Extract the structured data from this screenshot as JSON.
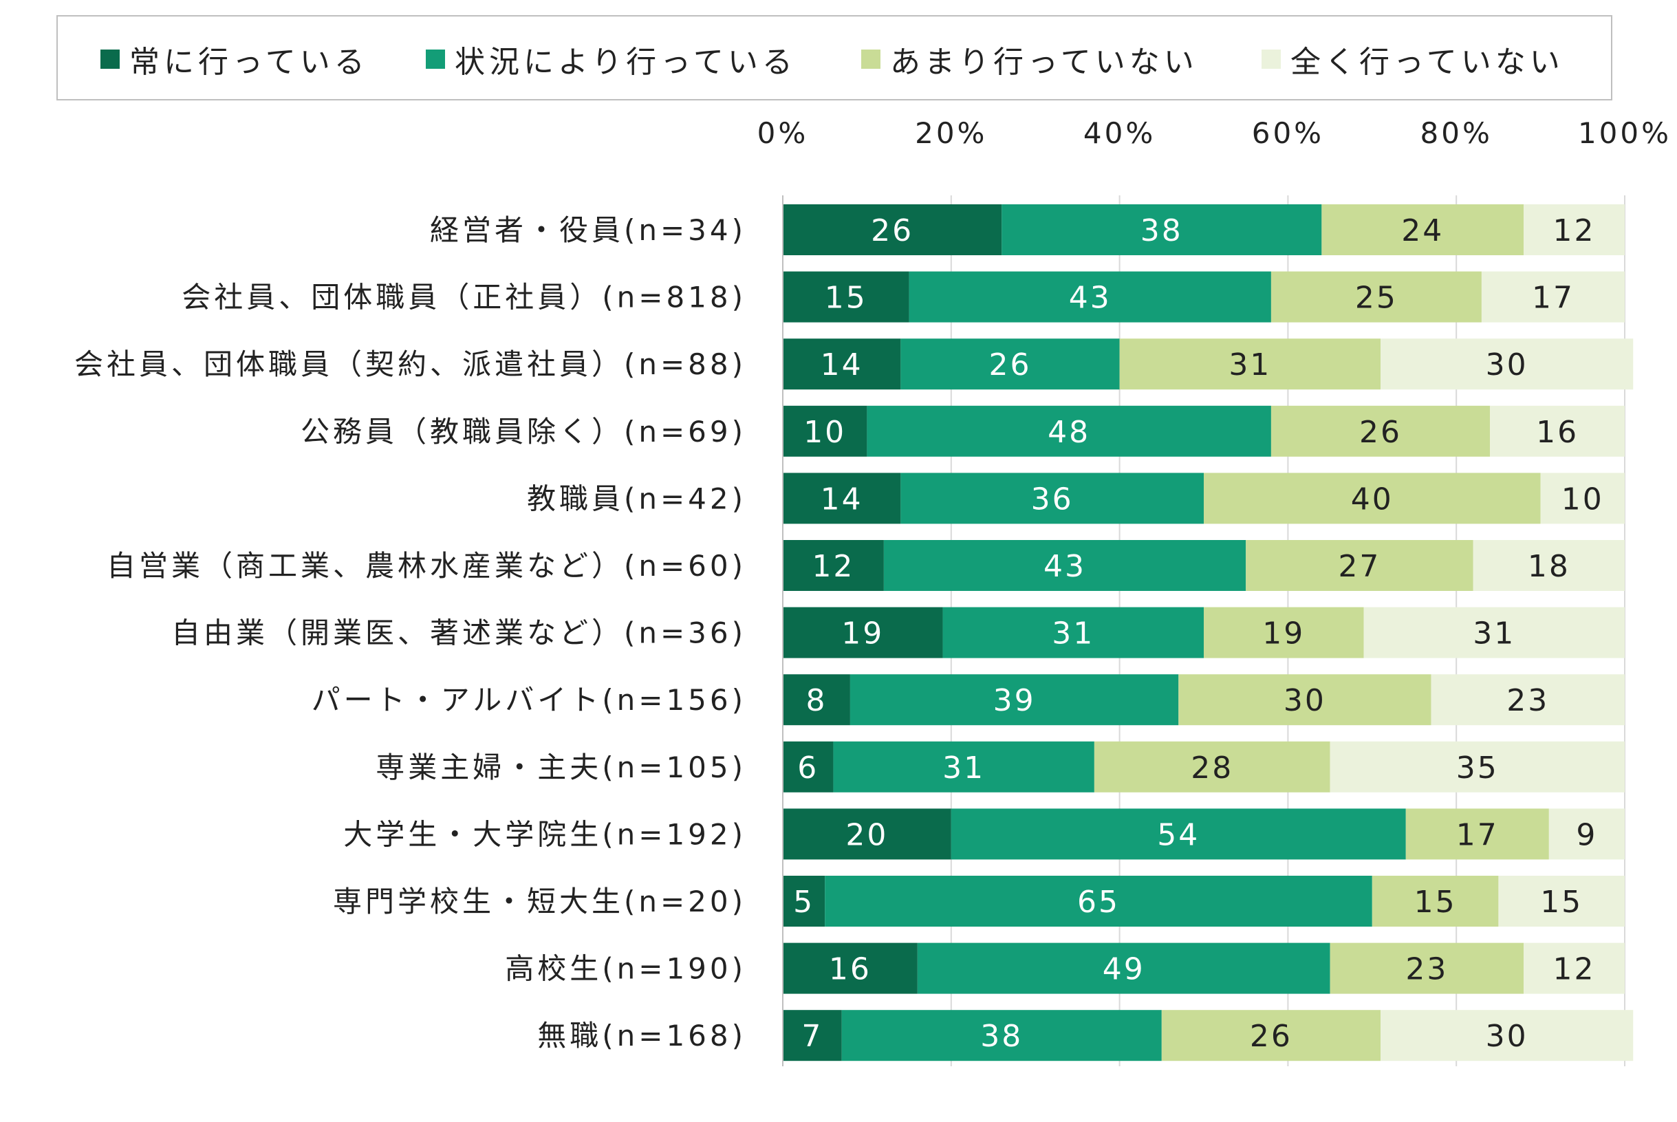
{
  "chart_data": {
    "type": "bar",
    "orientation": "horizontal",
    "stacked": true,
    "title": "",
    "xlabel": "",
    "ylabel": "",
    "xlim": [
      0,
      100
    ],
    "grid": true,
    "legend_position": "top",
    "x_ticks": [
      "0%",
      "20%",
      "40%",
      "60%",
      "80%",
      "100%"
    ],
    "categories": [
      "経営者・役員(n=34)",
      "会社員、団体職員（正社員）(n=818)",
      "会社員、団体職員（契約、派遣社員）(n=88)",
      "公務員（教職員除く）(n=69)",
      "教職員(n=42)",
      "自営業（商工業、農林水産業など）(n=60)",
      "自由業（開業医、著述業など）(n=36)",
      "パート・アルバイト(n=156)",
      "専業主婦・主夫(n=105)",
      "大学生・大学院生(n=192)",
      "専門学校生・短大生(n=20)",
      "高校生(n=190)",
      "無職(n=168)"
    ],
    "series": [
      {
        "name": "常に行っている",
        "color": "#0a6b4c",
        "label_color": "#ffffff",
        "values": [
          26,
          15,
          14,
          10,
          14,
          12,
          19,
          8,
          6,
          20,
          5,
          16,
          7
        ]
      },
      {
        "name": "状況により行っている",
        "color": "#139d77",
        "label_color": "#ffffff",
        "values": [
          38,
          43,
          26,
          48,
          36,
          43,
          31,
          39,
          31,
          54,
          65,
          49,
          38
        ]
      },
      {
        "name": "あまり行っていない",
        "color": "#c9dc96",
        "label_color": "#222222",
        "values": [
          24,
          25,
          31,
          26,
          40,
          27,
          19,
          30,
          28,
          17,
          15,
          23,
          26
        ]
      },
      {
        "name": "全く行っていない",
        "color": "#ebf2dc",
        "label_color": "#222222",
        "values": [
          12,
          17,
          30,
          16,
          10,
          18,
          31,
          23,
          35,
          9,
          15,
          12,
          30
        ]
      }
    ]
  }
}
